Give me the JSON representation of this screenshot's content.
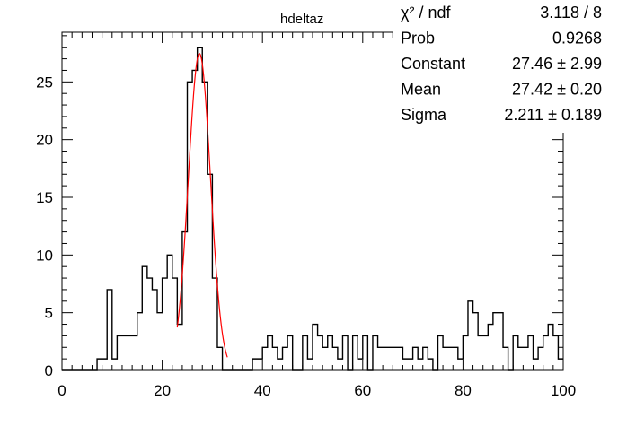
{
  "chart_data": {
    "type": "histogram",
    "title": "hdeltaz",
    "xlabel": "",
    "ylabel": "",
    "xlim": [
      0,
      100
    ],
    "ylim": [
      0,
      29.3
    ],
    "grid": false,
    "x_ticks": [
      0,
      20,
      40,
      60,
      80,
      100
    ],
    "y_ticks": [
      0,
      5,
      10,
      15,
      20,
      25
    ],
    "bin_width": 1,
    "bin_edges_start": 0,
    "values": [
      0,
      0,
      0,
      0,
      0,
      0,
      0,
      1,
      1,
      7,
      1,
      3,
      3,
      3,
      3,
      5,
      9,
      8,
      7,
      5,
      8,
      10,
      8,
      4,
      12,
      25,
      26,
      28,
      25,
      17,
      8,
      2,
      0,
      0,
      0,
      0,
      0,
      0,
      1,
      1,
      2,
      3,
      2,
      1,
      2,
      3,
      0,
      0,
      3,
      1,
      4,
      3,
      2,
      3,
      2,
      1,
      3,
      0,
      3,
      1,
      3,
      0,
      3,
      2,
      2,
      2,
      2,
      2,
      1,
      1,
      2,
      1,
      2,
      1,
      0,
      3,
      2,
      2,
      2,
      1,
      3,
      6,
      5,
      3,
      3,
      4,
      5,
      5,
      2,
      0,
      3,
      2,
      2,
      3,
      1,
      2,
      3,
      4,
      3,
      1
    ],
    "fit": {
      "type": "gaus",
      "color": "#ff0000",
      "x_range": [
        23,
        33
      ],
      "constant": 27.46,
      "mean": 27.42,
      "sigma": 2.211
    },
    "stats_box": {
      "position": "top-right",
      "rows": [
        {
          "label": "χ² / ndf",
          "value": "3.118 / 8"
        },
        {
          "label": "Prob",
          "value": "0.9268"
        },
        {
          "label": "Constant",
          "value": "27.46 ± 2.99"
        },
        {
          "label": "Mean",
          "value": "27.42 ± 0.20"
        },
        {
          "label": "Sigma",
          "value": "2.211 ± 0.189"
        }
      ]
    }
  }
}
